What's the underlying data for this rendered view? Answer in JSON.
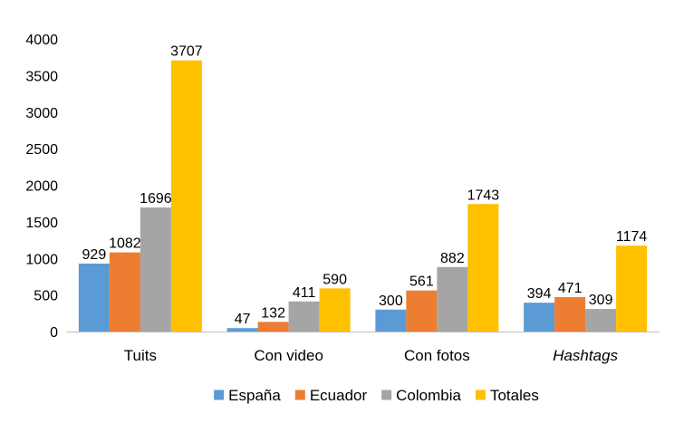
{
  "chart_data": {
    "type": "bar",
    "title": "",
    "xlabel": "",
    "ylabel": "",
    "categories": [
      "Tuits",
      "Con video",
      "Con fotos",
      "Hashtags"
    ],
    "italic_categories": [
      "Hashtags"
    ],
    "ylim": [
      0,
      4000
    ],
    "yticks": [
      0,
      500,
      1000,
      1500,
      2000,
      2500,
      3000,
      3500,
      4000
    ],
    "grid": false,
    "legend_position": "bottom",
    "series": [
      {
        "name": "España",
        "color": "#5B9BD5",
        "values": [
          929,
          47,
          300,
          394
        ]
      },
      {
        "name": "Ecuador",
        "color": "#ED7D31",
        "values": [
          1082,
          132,
          561,
          471
        ]
      },
      {
        "name": "Colombia",
        "color": "#A5A5A5",
        "values": [
          1696,
          411,
          882,
          309
        ]
      },
      {
        "name": "Totales",
        "color": "#FFC000",
        "values": [
          3707,
          590,
          1743,
          1174
        ]
      }
    ]
  }
}
